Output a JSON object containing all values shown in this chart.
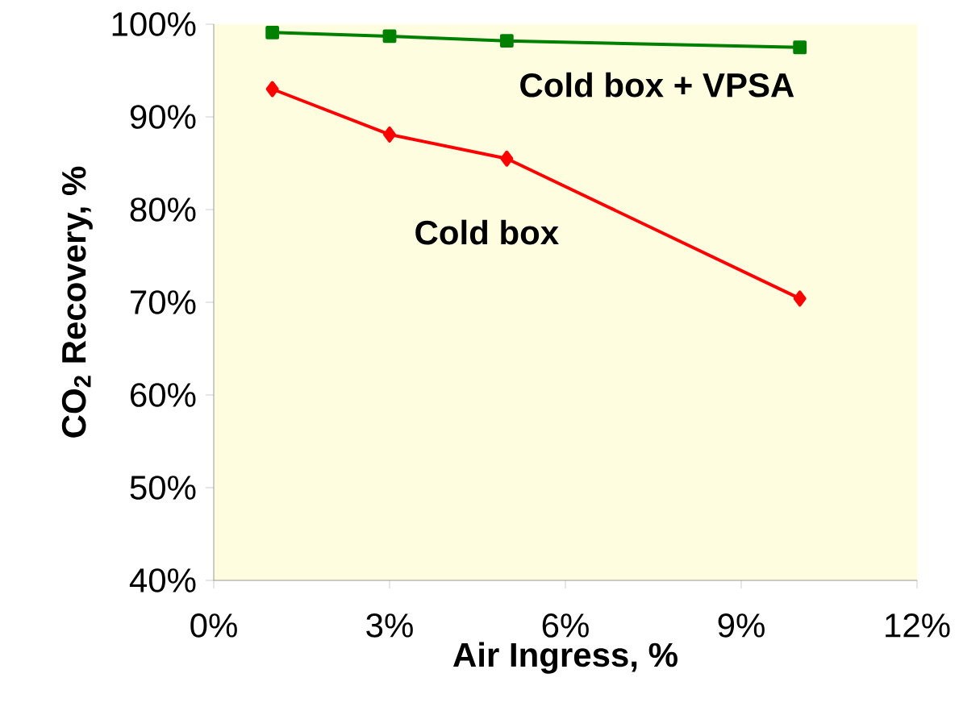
{
  "chart_data": {
    "type": "line",
    "xlabel": "Air Ingress, %",
    "ylabel": "CO$_{2}$ Recovery, %",
    "xlim": [
      0,
      12
    ],
    "ylim": [
      40,
      100
    ],
    "xticks": [
      {
        "value": 0,
        "label": "0%"
      },
      {
        "value": 3,
        "label": "3%"
      },
      {
        "value": 6,
        "label": "6%"
      },
      {
        "value": 9,
        "label": "9%"
      },
      {
        "value": 12,
        "label": "12%"
      }
    ],
    "yticks": [
      {
        "value": 40,
        "label": "40%"
      },
      {
        "value": 50,
        "label": "50%"
      },
      {
        "value": 60,
        "label": "60%"
      },
      {
        "value": 70,
        "label": "70%"
      },
      {
        "value": 80,
        "label": "80%"
      },
      {
        "value": 90,
        "label": "90%"
      },
      {
        "value": 100,
        "label": "100%"
      }
    ],
    "grid": false,
    "legend": false,
    "series": [
      {
        "name": "Cold box + VPSA",
        "color": "#008000",
        "marker": "square",
        "x": [
          1,
          3,
          5,
          10
        ],
        "values": [
          99.1,
          98.7,
          98.2,
          97.5
        ]
      },
      {
        "name": "Cold box",
        "color": "#ff0000",
        "marker": "diamond",
        "x": [
          1,
          3,
          5,
          10
        ],
        "values": [
          93.0,
          88.1,
          85.5,
          70.4
        ]
      }
    ]
  }
}
